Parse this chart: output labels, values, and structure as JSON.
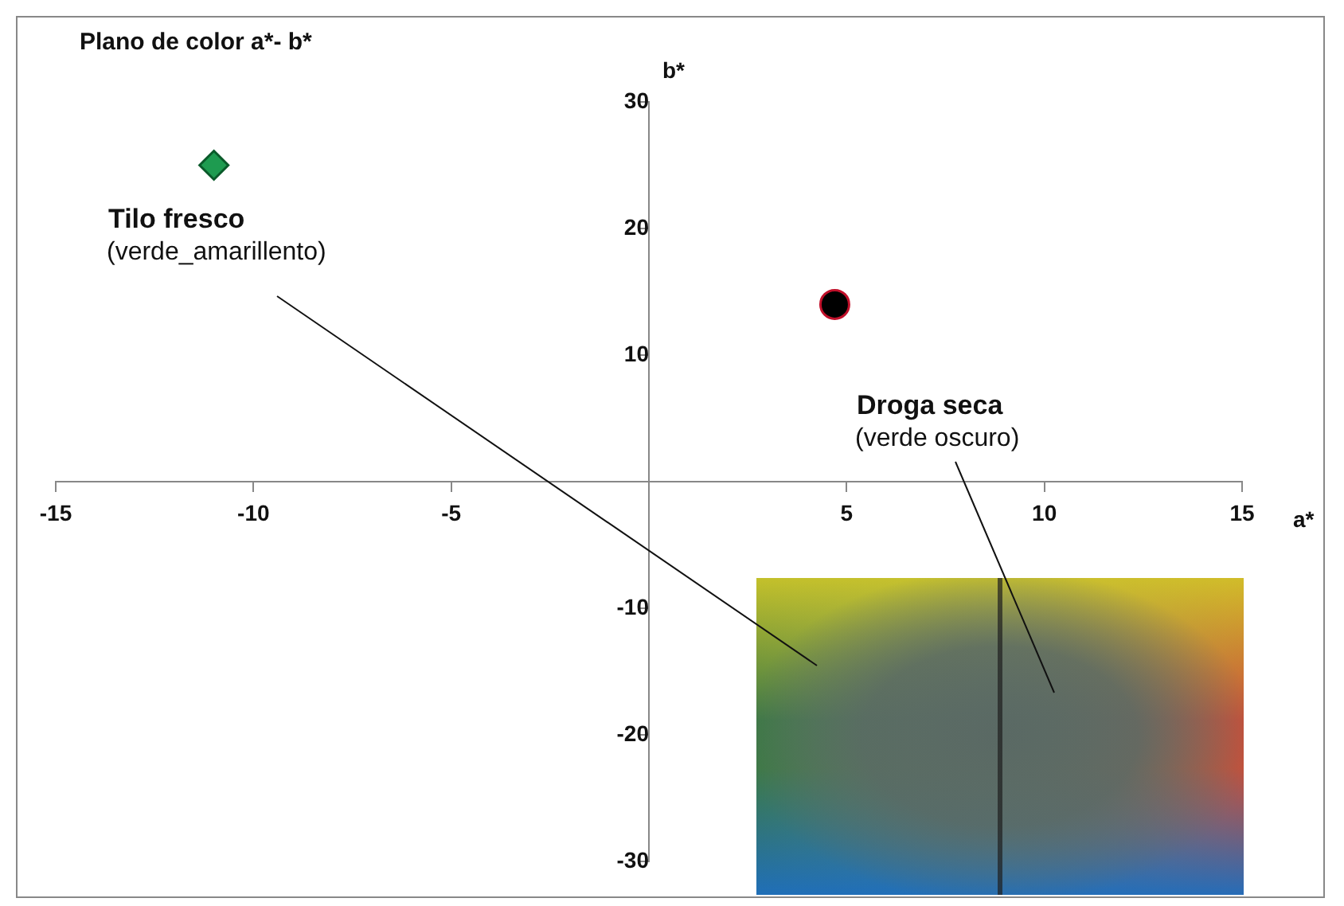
{
  "chart_data": {
    "type": "scatter",
    "title": "Plano de color a*- b*",
    "xlabel": "a*",
    "ylabel": "b*",
    "xlim": [
      -15,
      15
    ],
    "xticks": [
      -15,
      -10,
      -5,
      5,
      10,
      15
    ],
    "ylim": [
      -30,
      30
    ],
    "yticks": [
      -30,
      -20,
      -10,
      10,
      20,
      30
    ],
    "series": [
      {
        "x": [
          -11
        ],
        "values": [
          25
        ],
        "color": "#1e9b50",
        "marker": "diamond"
      },
      {
        "x": [
          4.7
        ],
        "values": [
          14
        ],
        "color": "#000000",
        "marker": "circle"
      }
    ],
    "annotations": [
      "Tilo fresco",
      "(verde_amarillento)",
      "Droga seca",
      "(verde oscuro)"
    ],
    "grid": false,
    "legend": false
  }
}
